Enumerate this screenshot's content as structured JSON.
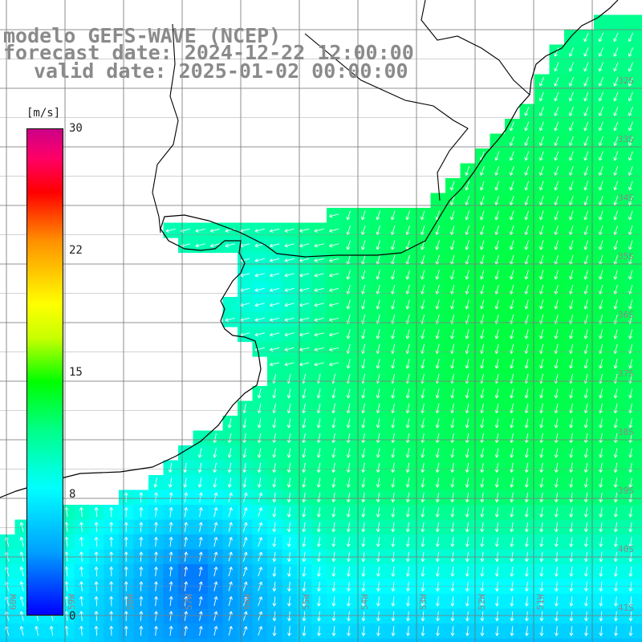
{
  "title": {
    "line1": "modelo GEFS-WAVE (NCEP)",
    "line2": "forecast date: 2024-12-22 12:00:00",
    "line3": "valid date: 2025-01-02 00:00:00"
  },
  "colorbar": {
    "unit": "[m/s]",
    "ticks": [
      "30",
      "22",
      "15",
      "8",
      "0"
    ],
    "tick_values": [
      30,
      22,
      15,
      8,
      0
    ],
    "range": [
      0,
      30
    ]
  },
  "map_labels": {
    "lat": [
      "32S",
      "33S",
      "34S",
      "35S",
      "36S",
      "37S",
      "38S",
      "39S",
      "40S",
      "41S"
    ],
    "lon": [
      "60W",
      "59W",
      "58W",
      "57W",
      "56W",
      "55W",
      "54W",
      "53W",
      "52W",
      "51W"
    ]
  },
  "colors": {
    "land": "#ffffff",
    "grid": "#707070",
    "coast": "#000000",
    "arrows": "#ffffff",
    "label": "#8a8a8a"
  }
}
